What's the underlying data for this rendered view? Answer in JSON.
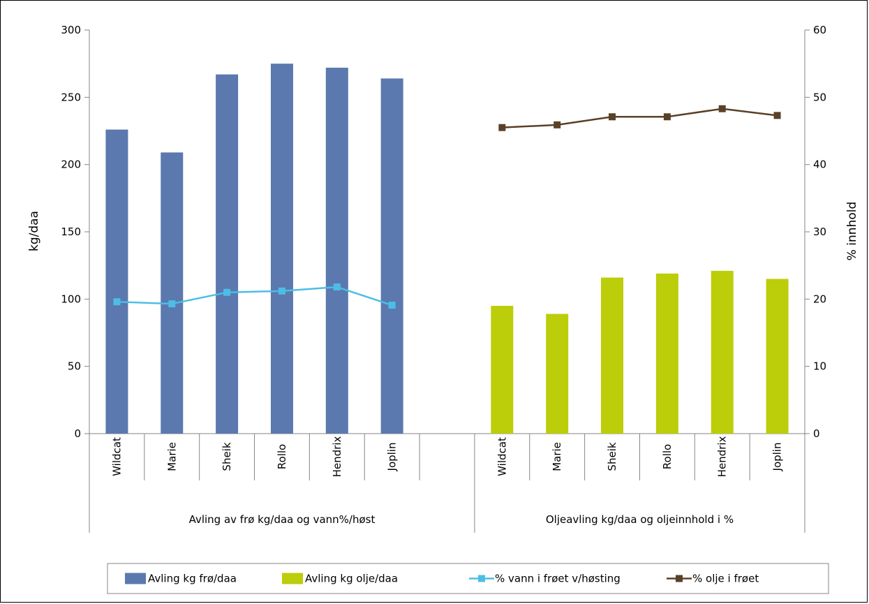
{
  "chart_data": {
    "type": "bar",
    "title": "",
    "y_left": {
      "label": "kg/daa",
      "min": 0,
      "max": 300,
      "step": 50
    },
    "y_right": {
      "label": "% innhold",
      "min": 0,
      "max": 60,
      "step": 10
    },
    "groups": [
      {
        "label": "Avling av frø kg/daa og vann%/høst",
        "categories": [
          "Wildcat",
          "Marie",
          "Sheik",
          "Rollo",
          "Hendrix",
          "Joplin",
          ""
        ],
        "bar_series": "Avling kg frø/daa",
        "line_series": "% vann i frøet v/høsting"
      },
      {
        "label": "Oljeavling kg/daa og oljeinnhold i %",
        "categories": [
          "Wildcat",
          "Marie",
          "Sheik",
          "Rollo",
          "Hendrix",
          "Joplin"
        ],
        "bar_series": "Avling kg olje/daa",
        "line_series": "% olje i frøet"
      }
    ],
    "series": [
      {
        "name": "Avling kg frø/daa",
        "kind": "bar",
        "axis": "left",
        "color": "#5b79ae",
        "group": 0,
        "values": [
          226,
          209,
          267,
          275,
          272,
          264
        ]
      },
      {
        "name": "Avling kg olje/daa",
        "kind": "bar",
        "axis": "left",
        "color": "#bccd0a",
        "group": 1,
        "values": [
          95,
          89,
          116,
          119,
          121,
          115
        ]
      },
      {
        "name": "% vann i frøet v/høsting",
        "kind": "line",
        "axis": "right",
        "color": "#4dbde6",
        "marker": "square",
        "group": 0,
        "values": [
          19.6,
          19.3,
          21.0,
          21.2,
          21.8,
          19.1
        ]
      },
      {
        "name": "% olje i frøet",
        "kind": "line",
        "axis": "right",
        "color": "#5a4027",
        "marker": "square",
        "group": 1,
        "values": [
          45.5,
          45.9,
          47.1,
          47.1,
          48.3,
          47.3
        ]
      }
    ],
    "legend": "bottom",
    "grid": false
  }
}
